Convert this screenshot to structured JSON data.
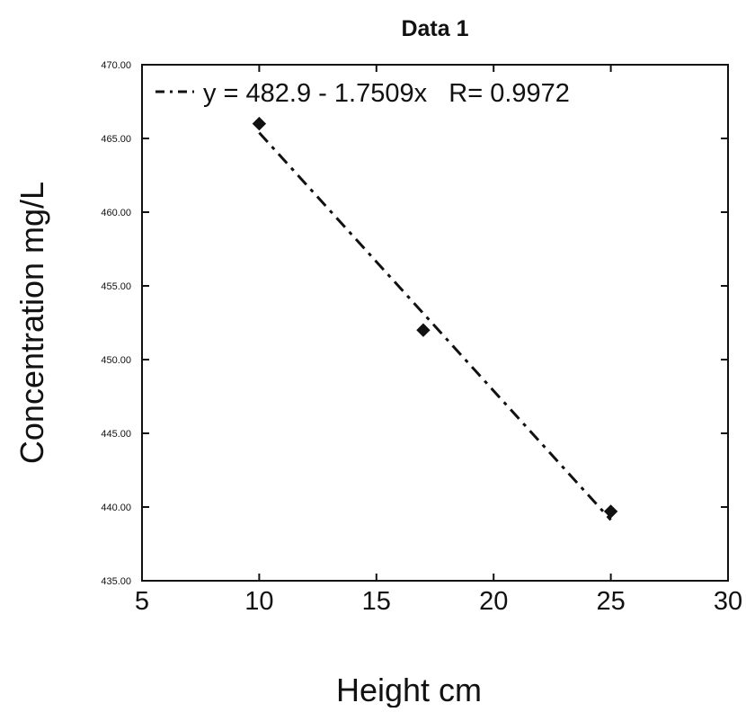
{
  "chart_data": {
    "type": "scatter",
    "title": "Data 1",
    "xlabel": "Height cm",
    "ylabel": "Concentration mg/L",
    "xlim": [
      5,
      30
    ],
    "ylim": [
      435,
      470
    ],
    "x_ticks": [
      5,
      10,
      15,
      20,
      25,
      30
    ],
    "x_tick_labels": [
      "5",
      "10",
      "15",
      "20",
      "25",
      "30"
    ],
    "y_ticks": [
      435,
      440,
      445,
      450,
      455,
      460,
      465,
      470
    ],
    "y_tick_labels": [
      "435.00",
      "440.00",
      "445.00",
      "450.00",
      "455.00",
      "460.00",
      "465.00",
      "470.00"
    ],
    "grid": false,
    "legend_position": "top-left",
    "series": [
      {
        "points": [
          {
            "x": 10,
            "y": 466
          },
          {
            "x": 17,
            "y": 452
          },
          {
            "x": 25,
            "y": 439.7
          }
        ],
        "marker_color": "#111111"
      }
    ],
    "trendline": {
      "label": "y = 482.9 - 1.7509x   R= 0.9972",
      "intercept": 482.9,
      "slope": -1.7509,
      "x_range": [
        10,
        25
      ],
      "style": "dash-dot",
      "color": "#111111"
    }
  }
}
